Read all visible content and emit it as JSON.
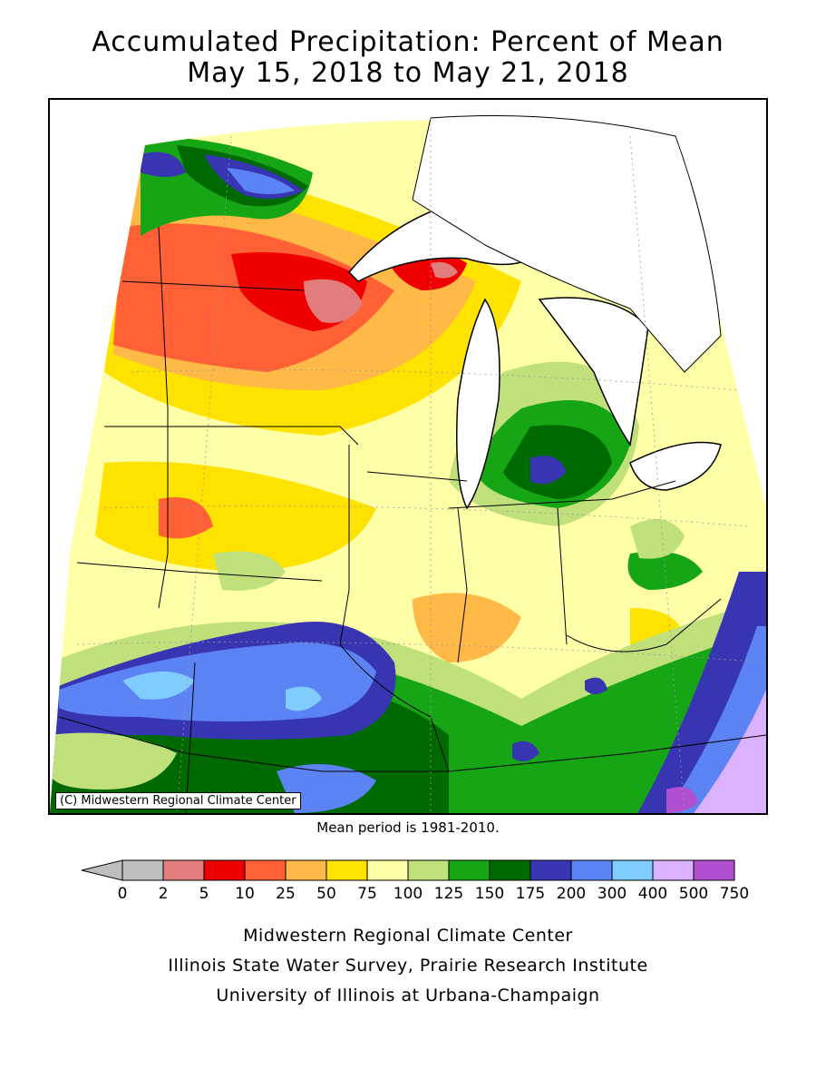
{
  "title": {
    "line1": "Accumulated Precipitation: Percent of Mean",
    "line2": "May 15, 2018 to May 21, 2018"
  },
  "map": {
    "copyright": "(C) Midwestern Regional Climate Center",
    "mean_period": "Mean period is 1981-2010."
  },
  "legend": {
    "ticks": [
      "0",
      "2",
      "5",
      "10",
      "25",
      "50",
      "75",
      "100",
      "125",
      "150",
      "175",
      "200",
      "300",
      "400",
      "500",
      "750"
    ],
    "colors": [
      "#bebebe",
      "#e27d7d",
      "#ee0000",
      "#ff6035",
      "#ffb947",
      "#ffe300",
      "#ffffa7",
      "#bfe07a",
      "#16a515",
      "#006a00",
      "#3835b3",
      "#5c83f3",
      "#80ccff",
      "#dab2ff",
      "#b050d0"
    ],
    "below_zero_color": "#bebebe"
  },
  "credits": {
    "line1": "Midwestern Regional Climate Center",
    "line2": "Illinois State Water Survey, Prairie Research Institute",
    "line3": "University of Illinois at Urbana-Champaign"
  }
}
